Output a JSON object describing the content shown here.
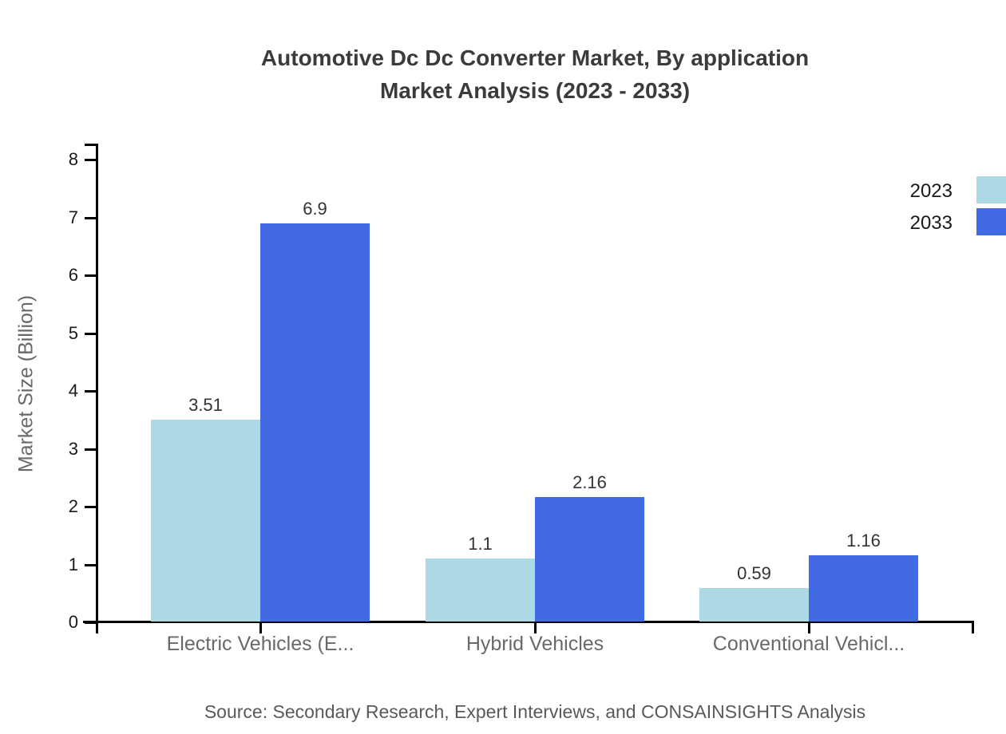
{
  "title": {
    "line1": "Automotive Dc Dc Converter Market, By application",
    "line2": "Market Analysis (2023 - 2033)"
  },
  "source": "Source: Secondary Research, Expert Interviews, and CONSAINSIGHTS Analysis",
  "chart_data": {
    "type": "bar",
    "title": "Automotive Dc Dc Converter Market, By application Market Analysis (2023 - 2033)",
    "categories": [
      "Electric Vehicles (E...",
      "Hybrid Vehicles",
      "Conventional Vehicl..."
    ],
    "series": [
      {
        "name": "2023",
        "color": "#ADD8E6",
        "values": [
          3.51,
          1.1,
          0.59
        ],
        "labels": [
          "3.51",
          "1.1",
          "0.59"
        ]
      },
      {
        "name": "2033",
        "color": "#4169E1",
        "values": [
          6.9,
          2.16,
          1.16
        ],
        "labels": [
          "6.9",
          "2.16",
          "1.16"
        ]
      }
    ],
    "xlabel": "",
    "ylabel": "Market Size (Billion)",
    "ylim": [
      0,
      8
    ],
    "yticks": [
      0,
      1,
      2,
      3,
      4,
      5,
      6,
      7,
      8
    ],
    "grid": false,
    "legend_position": "top-right",
    "colors": {
      "axis": "#000000",
      "tick_label": "#1a1a1a",
      "value_label": "#333333",
      "category_label": "#696969"
    }
  }
}
